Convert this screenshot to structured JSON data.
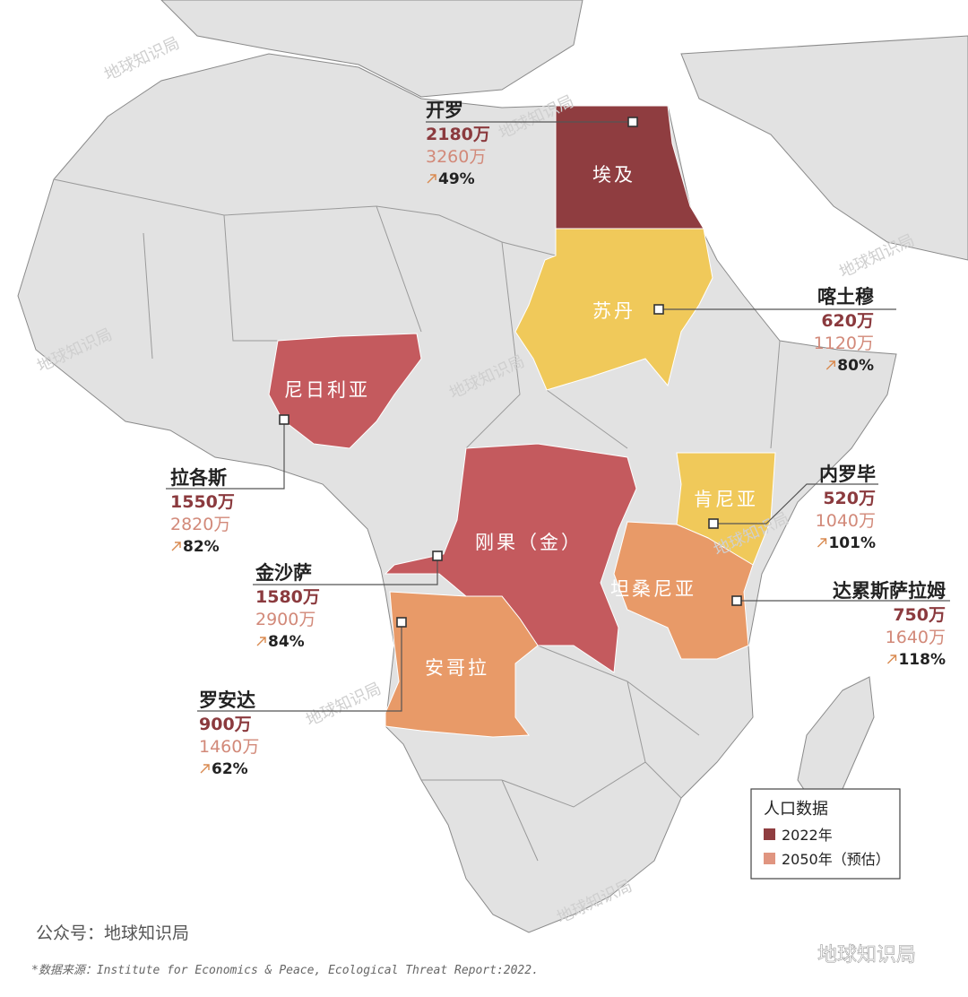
{
  "watermark": "地球知识局",
  "countries": [
    {
      "name": "埃及"
    },
    {
      "name": "苏丹"
    },
    {
      "name": "尼日利亚"
    },
    {
      "name": "刚果（金）"
    },
    {
      "name": "肯尼亚"
    },
    {
      "name": "坦桑尼亚"
    },
    {
      "name": "安哥拉"
    }
  ],
  "cities": [
    {
      "name": "开罗",
      "pop_2022": "2180万",
      "pop_2050": "3260万",
      "growth": "49%"
    },
    {
      "name": "喀土穆",
      "pop_2022": "620万",
      "pop_2050": "1120万",
      "growth": "80%"
    },
    {
      "name": "拉各斯",
      "pop_2022": "1550万",
      "pop_2050": "2820万",
      "growth": "82%"
    },
    {
      "name": "金沙萨",
      "pop_2022": "1580万",
      "pop_2050": "2900万",
      "growth": "84%"
    },
    {
      "name": "罗安达",
      "pop_2022": "900万",
      "pop_2050": "1460万",
      "growth": "62%"
    },
    {
      "name": "内罗毕",
      "pop_2022": "520万",
      "pop_2050": "1040万",
      "growth": "101%"
    },
    {
      "name": "达累斯萨拉姆",
      "pop_2022": "750万",
      "pop_2050": "1640万",
      "growth": "118%"
    }
  ],
  "legend": {
    "title": "人口数据",
    "items": [
      "2022年",
      "2050年（预估）"
    ]
  },
  "footer": {
    "account": "公众号：地球知识局",
    "source": "*数据来源：Institute for Economics & Peace, Ecological Threat Report:2022.",
    "logo": "地球知识局"
  }
}
